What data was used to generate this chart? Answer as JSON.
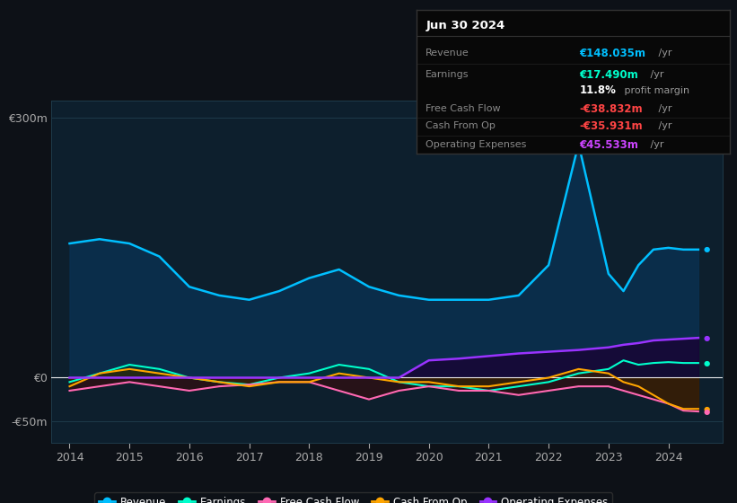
{
  "bg_color": "#0d1117",
  "plot_bg_color": "#0d1f2d",
  "grid_color": "#1e3a4a",
  "title": "Jun 30 2024",
  "info_rows": [
    {
      "label": "Revenue",
      "value": "€148.035m",
      "suffix": " /yr",
      "color": "#00bfff"
    },
    {
      "label": "Earnings",
      "value": "€17.490m",
      "suffix": " /yr",
      "color": "#00ffcc"
    },
    {
      "label": "",
      "value": "11.8%",
      "suffix": " profit margin",
      "color": "#ffffff"
    },
    {
      "label": "Free Cash Flow",
      "value": "-€38.832m",
      "suffix": " /yr",
      "color": "#ff4444"
    },
    {
      "label": "Cash From Op",
      "value": "-€35.931m",
      "suffix": " /yr",
      "color": "#ff4444"
    },
    {
      "label": "Operating Expenses",
      "value": "€45.533m",
      "suffix": " /yr",
      "color": "#cc44ff"
    }
  ],
  "years": [
    2014,
    2014.5,
    2015,
    2015.5,
    2016,
    2016.5,
    2017,
    2017.5,
    2018,
    2018.5,
    2019,
    2019.5,
    2020,
    2020.5,
    2021,
    2021.5,
    2022,
    2022.5,
    2023,
    2023.25,
    2023.5,
    2023.75,
    2024,
    2024.25,
    2024.5
  ],
  "revenue": [
    155,
    160,
    155,
    140,
    105,
    95,
    90,
    100,
    115,
    125,
    105,
    95,
    90,
    90,
    90,
    95,
    130,
    270,
    120,
    100,
    130,
    148,
    150,
    148,
    148
  ],
  "earnings": [
    -5,
    5,
    15,
    10,
    0,
    -5,
    -8,
    0,
    5,
    15,
    10,
    -5,
    -10,
    -10,
    -15,
    -10,
    -5,
    5,
    10,
    20,
    15,
    17,
    18,
    17,
    17
  ],
  "free_cash_flow": [
    -15,
    -10,
    -5,
    -10,
    -15,
    -10,
    -8,
    -5,
    -5,
    -15,
    -25,
    -15,
    -10,
    -15,
    -15,
    -20,
    -15,
    -10,
    -10,
    -15,
    -20,
    -25,
    -30,
    -38,
    -39
  ],
  "cash_from_op": [
    -10,
    5,
    10,
    5,
    0,
    -5,
    -10,
    -5,
    -5,
    5,
    0,
    -5,
    -5,
    -10,
    -10,
    -5,
    0,
    10,
    5,
    -5,
    -10,
    -20,
    -30,
    -36,
    -36
  ],
  "op_expenses": [
    0,
    0,
    0,
    0,
    0,
    0,
    0,
    0,
    0,
    0,
    0,
    0,
    20,
    22,
    25,
    28,
    30,
    32,
    35,
    38,
    40,
    43,
    44,
    45,
    46
  ],
  "revenue_color": "#00bfff",
  "revenue_fill": "#0a3050",
  "earnings_color": "#00ffcc",
  "earnings_fill": "#003333",
  "fcf_color": "#ff69b4",
  "fcf_fill": "#3a0a0a",
  "cfop_color": "#ffa500",
  "cfop_fill": "#3a2500",
  "opex_color": "#9933ff",
  "opex_fill": "#1a0033",
  "ylim": [
    -75,
    320
  ],
  "yticks": [
    -50,
    0,
    300
  ],
  "ytick_labels": [
    "-€50m",
    "€0",
    "€300m"
  ],
  "xlim": [
    2013.7,
    2024.9
  ],
  "xticks": [
    2014,
    2015,
    2016,
    2017,
    2018,
    2019,
    2020,
    2021,
    2022,
    2023,
    2024
  ],
  "legend_items": [
    {
      "label": "Revenue",
      "color": "#00bfff"
    },
    {
      "label": "Earnings",
      "color": "#00ffcc"
    },
    {
      "label": "Free Cash Flow",
      "color": "#ff69b4"
    },
    {
      "label": "Cash From Op",
      "color": "#ffa500"
    },
    {
      "label": "Operating Expenses",
      "color": "#9933ff"
    }
  ]
}
